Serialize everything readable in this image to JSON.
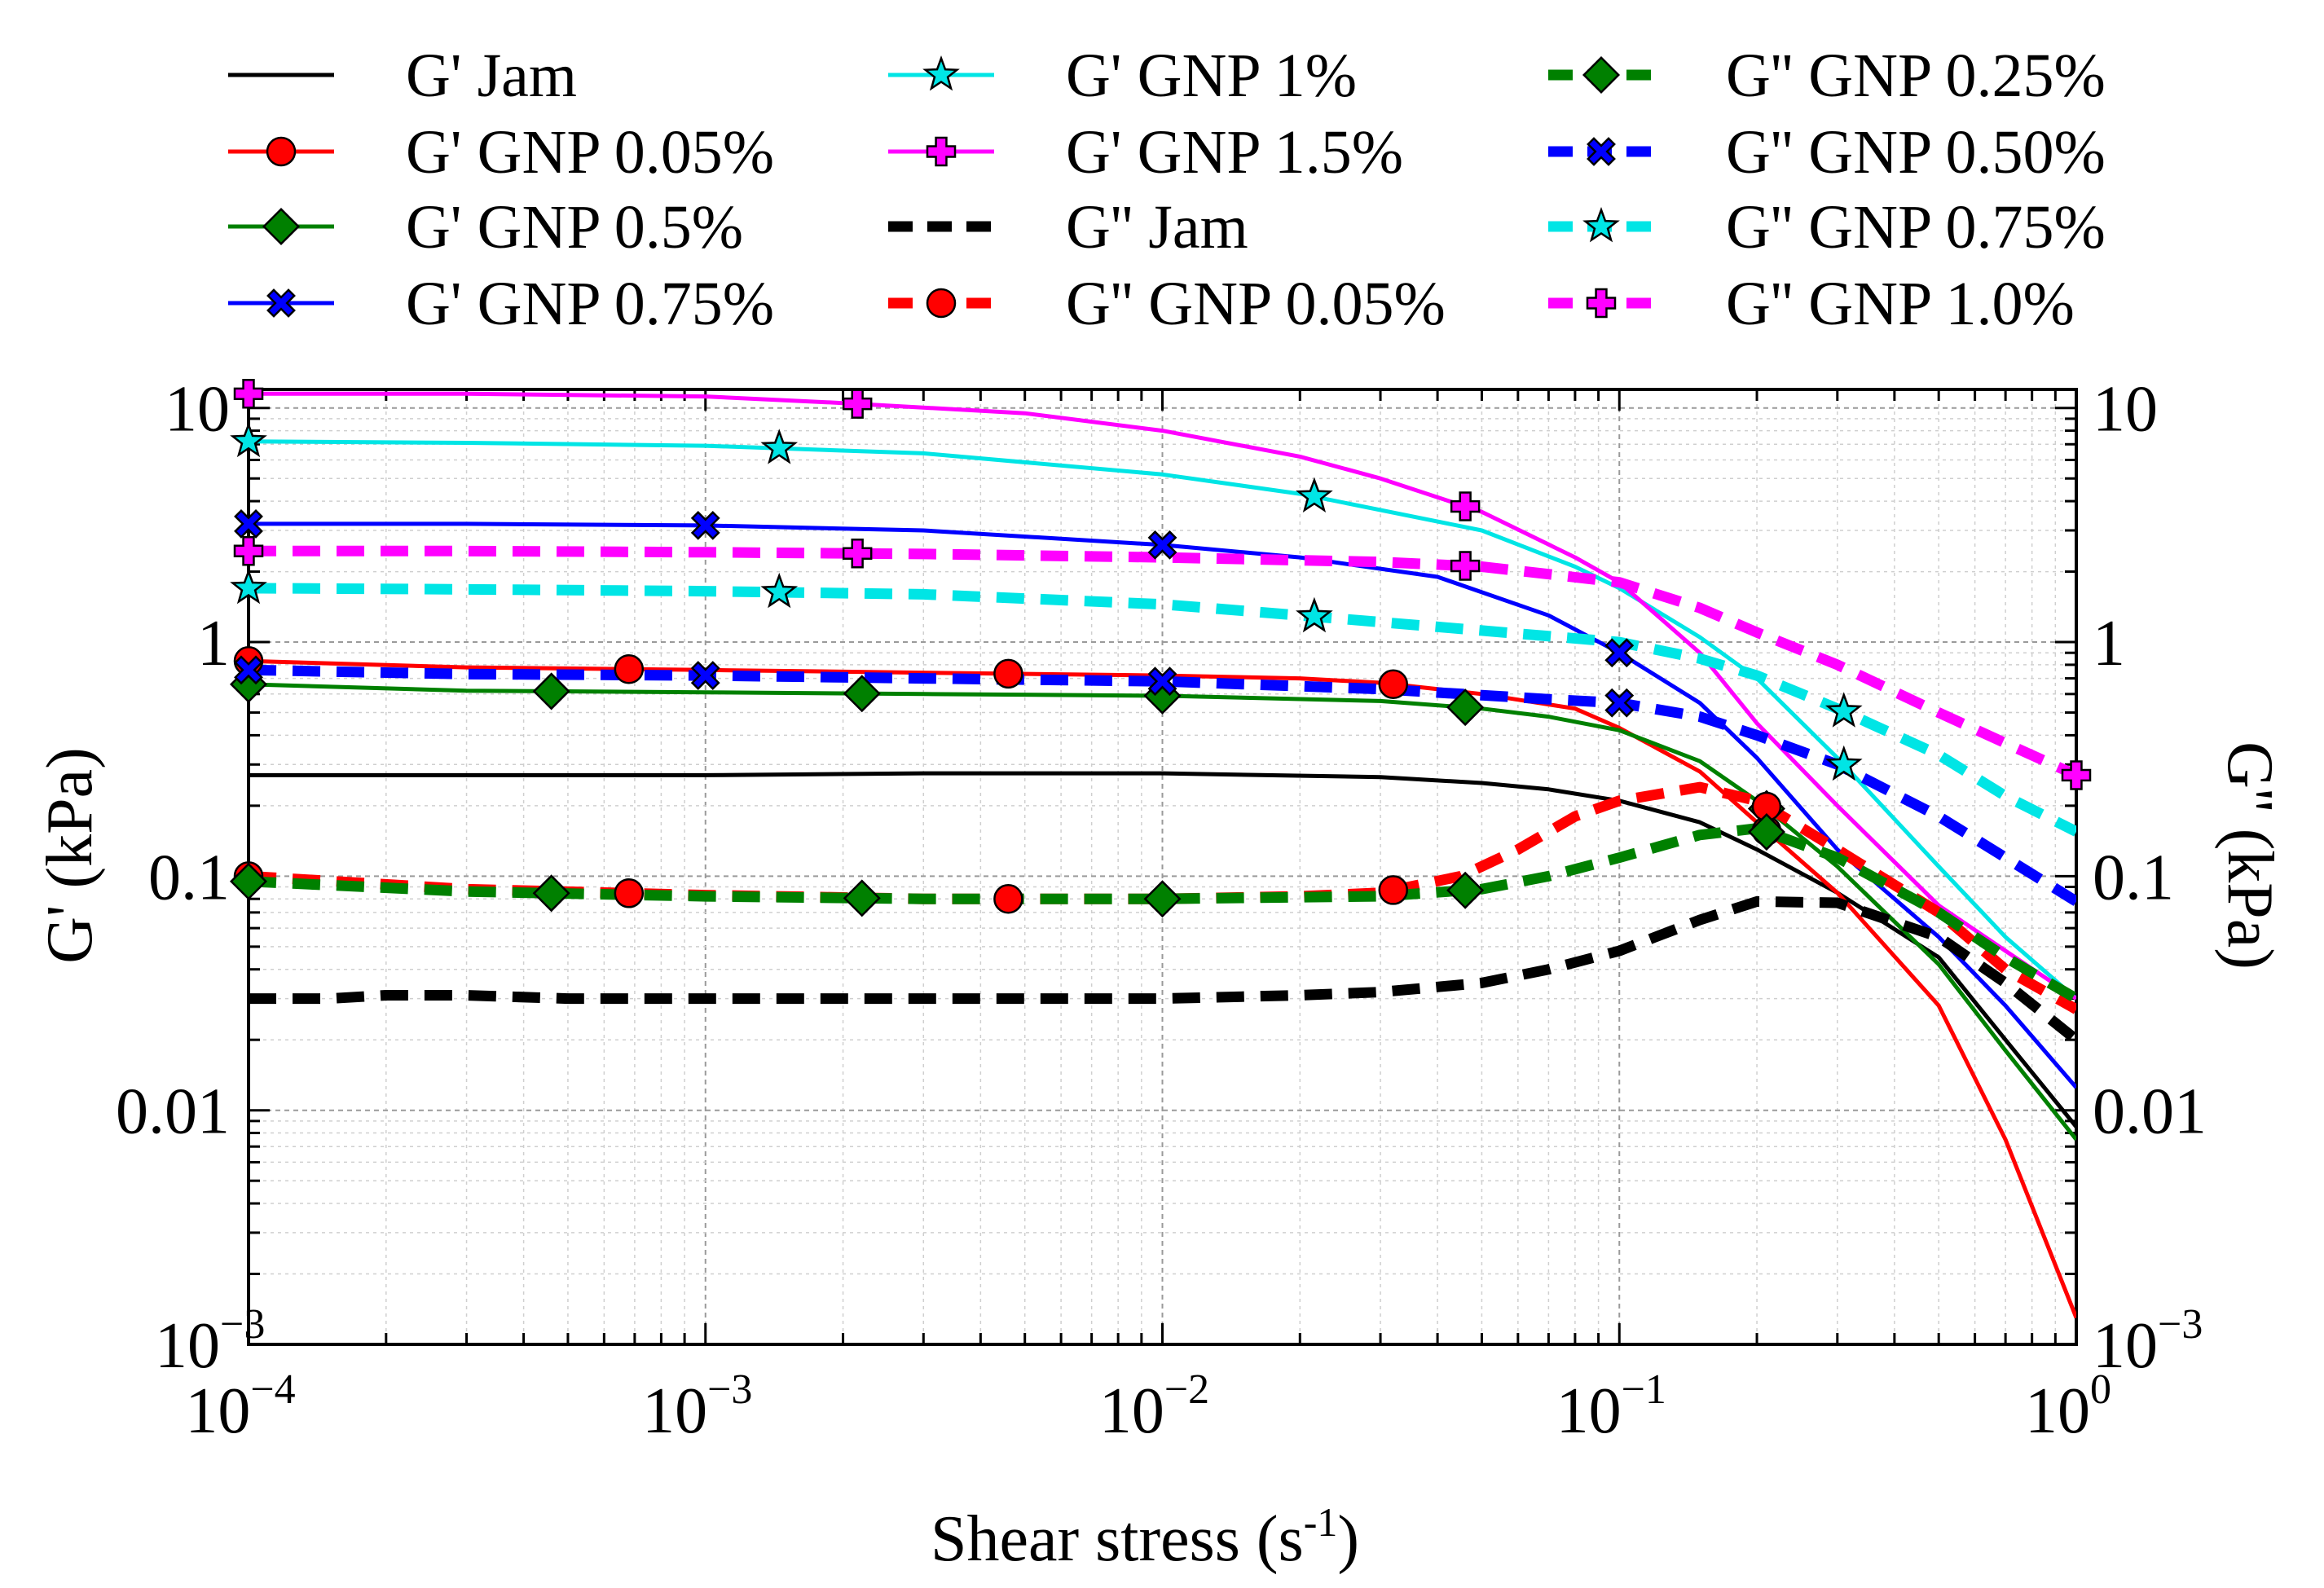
{
  "chart_data": {
    "type": "line",
    "xlabel": "Shear stress (s",
    "xlabel_sup": "-1",
    "xlabel_end": ")",
    "ylabel": "G' (kPa)",
    "y2label": "G'' (kPa)",
    "xscale": "log",
    "yscale": "log",
    "xlim": [
      0.0001,
      1
    ],
    "ylim": [
      0.001,
      12
    ],
    "grid": true,
    "legend_position": "top",
    "x_ticks": [
      {
        "value": 0.0001,
        "base": "10",
        "exp": "−4"
      },
      {
        "value": 0.001,
        "base": "10",
        "exp": "−3"
      },
      {
        "value": 0.01,
        "base": "10",
        "exp": "−2"
      },
      {
        "value": 0.1,
        "base": "10",
        "exp": "−1"
      },
      {
        "value": 1,
        "base": "10",
        "exp": "0"
      }
    ],
    "y_ticks": [
      {
        "value": 10,
        "label": "10"
      },
      {
        "value": 1,
        "label": "1"
      },
      {
        "value": 0.1,
        "label": "0.1"
      },
      {
        "value": 0.01,
        "label": "0.01"
      },
      {
        "value": 0.001,
        "base": "10",
        "exp": "−3"
      }
    ],
    "series": [
      {
        "name": "G' Jam",
        "color": "#000000",
        "dash": false,
        "marker": "none",
        "x": [
          0.0001,
          0.0003,
          0.001,
          0.003,
          0.01,
          0.03,
          0.05,
          0.07,
          0.1,
          0.15,
          0.2,
          0.3,
          0.5,
          0.7,
          1
        ],
        "y": [
          0.27,
          0.27,
          0.27,
          0.275,
          0.275,
          0.265,
          0.25,
          0.235,
          0.21,
          0.17,
          0.13,
          0.085,
          0.045,
          0.02,
          0.0085
        ],
        "mx": []
      },
      {
        "name": "G' GNP 0.05%",
        "color": "#ff0000",
        "dash": false,
        "marker": "circle",
        "x": [
          0.0001,
          0.0003,
          0.001,
          0.003,
          0.01,
          0.02,
          0.03,
          0.05,
          0.08,
          0.1,
          0.15,
          0.2,
          0.3,
          0.5,
          0.7,
          1
        ],
        "y": [
          0.83,
          0.78,
          0.76,
          0.74,
          0.72,
          0.7,
          0.67,
          0.6,
          0.52,
          0.43,
          0.28,
          0.17,
          0.085,
          0.028,
          0.0075,
          0.0013
        ],
        "mx": [
          0.0001,
          0.00068,
          0.0046,
          0.032,
          0.21
        ]
      },
      {
        "name": "G' GNP 0.5%",
        "color": "#008000",
        "dash": false,
        "marker": "diamond",
        "x": [
          0.0001,
          0.0003,
          0.001,
          0.003,
          0.01,
          0.03,
          0.05,
          0.07,
          0.1,
          0.15,
          0.2,
          0.3,
          0.5,
          0.7,
          1
        ],
        "y": [
          0.66,
          0.62,
          0.61,
          0.6,
          0.59,
          0.56,
          0.52,
          0.48,
          0.42,
          0.31,
          0.21,
          0.11,
          0.042,
          0.018,
          0.0075
        ],
        "mx": [
          0.0001,
          0.00046,
          0.0022,
          0.01,
          0.046,
          0.21
        ]
      },
      {
        "name": "G' GNP 0.75%",
        "color": "#0000ff",
        "dash": false,
        "marker": "x",
        "x": [
          0.0001,
          0.0003,
          0.001,
          0.003,
          0.01,
          0.02,
          0.04,
          0.07,
          0.1,
          0.15,
          0.2,
          0.3,
          0.5,
          0.7,
          1
        ],
        "y": [
          3.2,
          3.2,
          3.15,
          3.0,
          2.6,
          2.3,
          1.9,
          1.3,
          0.9,
          0.55,
          0.32,
          0.13,
          0.055,
          0.028,
          0.0125
        ],
        "mx": [
          0.0001,
          0.001,
          0.01,
          0.1
        ]
      },
      {
        "name": "G' GNP 1%",
        "color": "#00e5e5",
        "dash": false,
        "marker": "star",
        "x": [
          0.0001,
          0.0003,
          0.001,
          0.003,
          0.01,
          0.02,
          0.05,
          0.08,
          0.1,
          0.15,
          0.2,
          0.3,
          0.5,
          0.7,
          1
        ],
        "y": [
          7.2,
          7.1,
          6.9,
          6.4,
          5.2,
          4.3,
          3.0,
          2.1,
          1.7,
          1.05,
          0.7,
          0.32,
          0.11,
          0.055,
          0.03
        ],
        "mx": [
          0.0001,
          0.00145,
          0.0215,
          0.31
        ]
      },
      {
        "name": "G' GNP 1.5%",
        "color": "#ff00ff",
        "dash": false,
        "marker": "plus",
        "x": [
          0.0001,
          0.0003,
          0.001,
          0.002,
          0.005,
          0.01,
          0.02,
          0.03,
          0.05,
          0.08,
          0.1,
          0.15,
          0.2,
          0.3,
          0.5,
          0.7,
          1
        ],
        "y": [
          11.5,
          11.5,
          11.2,
          10.5,
          9.5,
          8.0,
          6.2,
          5.0,
          3.6,
          2.3,
          1.8,
          0.9,
          0.45,
          0.2,
          0.075,
          0.048,
          0.03
        ],
        "mx": [
          0.0001,
          0.00215,
          0.046
        ]
      },
      {
        "name": "G'' Jam",
        "color": "#000000",
        "dash": true,
        "marker": "none",
        "x": [
          0.0001,
          0.00015,
          0.0002,
          0.0003,
          0.0005,
          0.001,
          0.003,
          0.01,
          0.02,
          0.03,
          0.05,
          0.07,
          0.1,
          0.15,
          0.2,
          0.3,
          0.5,
          0.7,
          1
        ],
        "y": [
          0.03,
          0.03,
          0.031,
          0.031,
          0.03,
          0.03,
          0.03,
          0.03,
          0.031,
          0.032,
          0.035,
          0.04,
          0.048,
          0.065,
          0.078,
          0.077,
          0.055,
          0.035,
          0.02
        ],
        "mx": []
      },
      {
        "name": "G'' GNP 0.05%",
        "color": "#ff0000",
        "dash": true,
        "marker": "circle",
        "x": [
          0.0001,
          0.0003,
          0.001,
          0.003,
          0.01,
          0.02,
          0.03,
          0.045,
          0.06,
          0.08,
          0.1,
          0.15,
          0.2,
          0.3,
          0.5,
          0.7,
          1
        ],
        "y": [
          0.1,
          0.088,
          0.083,
          0.08,
          0.08,
          0.082,
          0.085,
          0.1,
          0.13,
          0.18,
          0.21,
          0.24,
          0.21,
          0.13,
          0.07,
          0.04,
          0.027
        ],
        "mx": [
          0.0001,
          0.00068,
          0.0046,
          0.032,
          0.21
        ]
      },
      {
        "name": "G'' GNP 0.25%",
        "color": "#008000",
        "dash": true,
        "marker": "diamond",
        "x": [
          0.0001,
          0.0003,
          0.001,
          0.003,
          0.01,
          0.03,
          0.05,
          0.07,
          0.1,
          0.15,
          0.2,
          0.3,
          0.5,
          0.7,
          1
        ],
        "y": [
          0.095,
          0.086,
          0.082,
          0.08,
          0.08,
          0.082,
          0.088,
          0.1,
          0.12,
          0.15,
          0.16,
          0.12,
          0.07,
          0.045,
          0.03
        ],
        "mx": [
          0.0001,
          0.00046,
          0.0022,
          0.01,
          0.046,
          0.21
        ]
      },
      {
        "name": "G'' GNP 0.50%",
        "color": "#0000ff",
        "dash": true,
        "marker": "x",
        "x": [
          0.0001,
          0.0003,
          0.001,
          0.003,
          0.01,
          0.03,
          0.07,
          0.1,
          0.15,
          0.2,
          0.3,
          0.5,
          0.7,
          1
        ],
        "y": [
          0.76,
          0.73,
          0.72,
          0.7,
          0.68,
          0.63,
          0.57,
          0.55,
          0.48,
          0.4,
          0.3,
          0.18,
          0.12,
          0.078
        ],
        "mx": [
          0.0001,
          0.001,
          0.01,
          0.1
        ]
      },
      {
        "name": "G'' GNP 0.75%",
        "color": "#00e5e5",
        "dash": true,
        "marker": "star",
        "x": [
          0.0001,
          0.0003,
          0.001,
          0.003,
          0.01,
          0.02,
          0.05,
          0.1,
          0.15,
          0.2,
          0.3,
          0.5,
          0.7,
          1
        ],
        "y": [
          1.7,
          1.68,
          1.65,
          1.6,
          1.45,
          1.3,
          1.12,
          1.0,
          0.85,
          0.72,
          0.52,
          0.33,
          0.22,
          0.155
        ],
        "mx": [
          0.0001,
          0.00145,
          0.0215,
          0.31
        ]
      },
      {
        "name": "G'' GNP 1.0%",
        "color": "#ff00ff",
        "dash": true,
        "marker": "plus",
        "x": [
          0.0001,
          0.0003,
          0.001,
          0.003,
          0.01,
          0.03,
          0.05,
          0.07,
          0.1,
          0.15,
          0.2,
          0.3,
          0.5,
          0.7,
          1
        ],
        "y": [
          2.45,
          2.45,
          2.42,
          2.38,
          2.3,
          2.2,
          2.1,
          1.95,
          1.8,
          1.4,
          1.1,
          0.8,
          0.5,
          0.37,
          0.27
        ],
        "mx": [
          0.0001,
          0.00215,
          0.046,
          1.0
        ]
      }
    ]
  }
}
